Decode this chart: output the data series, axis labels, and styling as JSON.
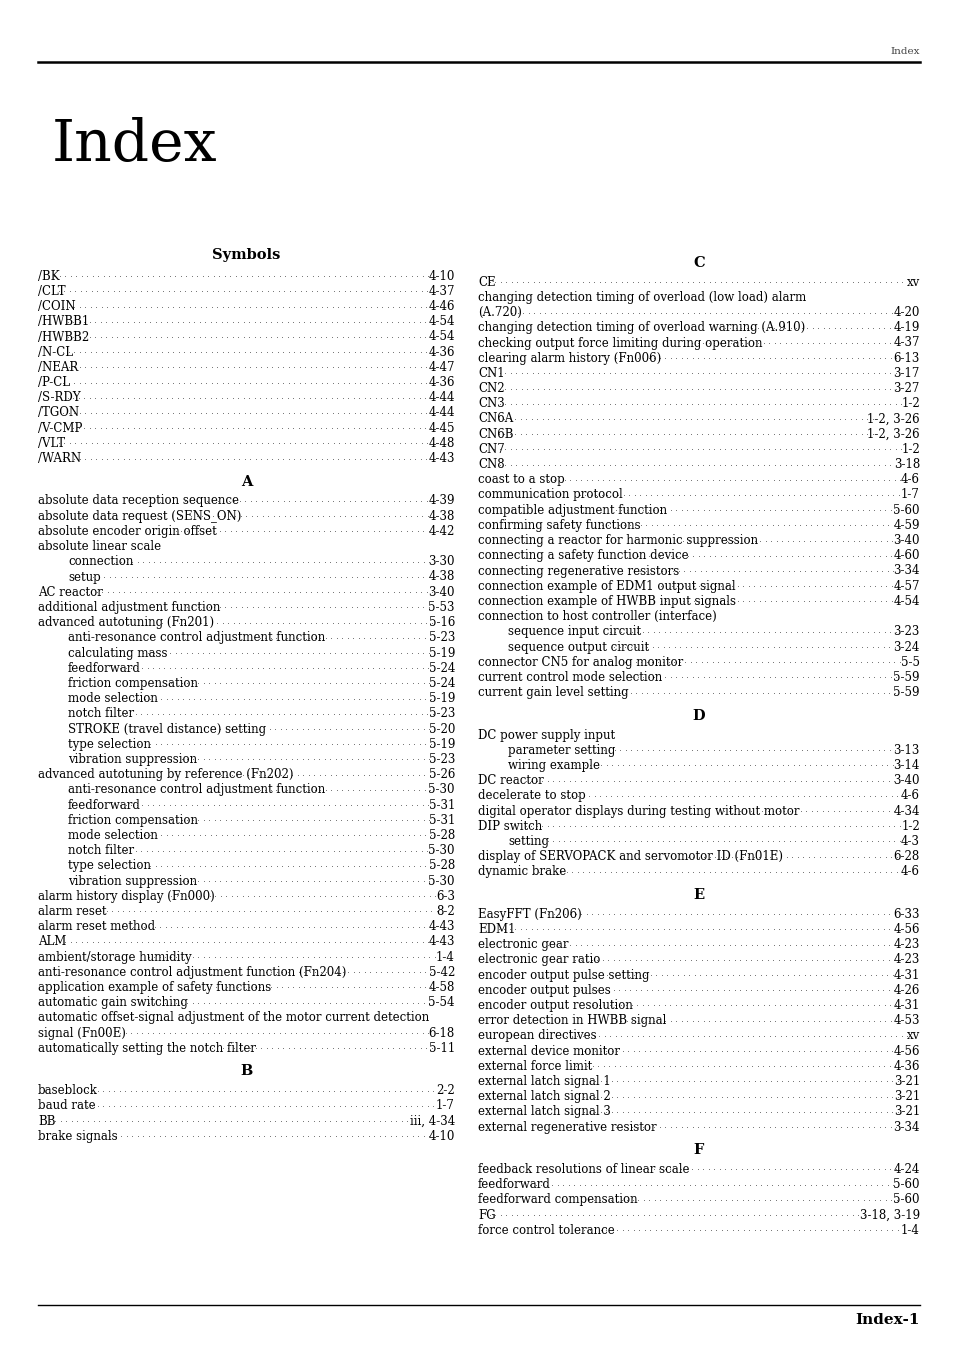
{
  "header_right": "Index",
  "footer_text": "Index-1",
  "title_index": "Index",
  "bg_color": "#ffffff",
  "left_entries": [
    {
      "text": "/BK",
      "page": "4-10",
      "indent": 0
    },
    {
      "text": "/CLT",
      "page": "4-37",
      "indent": 0
    },
    {
      "text": "/COIN",
      "page": "4-46",
      "indent": 0
    },
    {
      "text": "/HWBB1",
      "page": "4-54",
      "indent": 0
    },
    {
      "text": "/HWBB2",
      "page": "4-54",
      "indent": 0
    },
    {
      "text": "/N-CL",
      "page": "4-36",
      "indent": 0
    },
    {
      "text": "/NEAR",
      "page": "4-47",
      "indent": 0
    },
    {
      "text": "/P-CL",
      "page": "4-36",
      "indent": 0
    },
    {
      "text": "/S-RDY",
      "page": "4-44",
      "indent": 0
    },
    {
      "text": "/TGON",
      "page": "4-44",
      "indent": 0
    },
    {
      "text": "/V-CMP",
      "page": "4-45",
      "indent": 0
    },
    {
      "text": "/VLT",
      "page": "4-48",
      "indent": 0
    },
    {
      "text": "/WARN",
      "page": "4-43",
      "indent": 0
    },
    {
      "text": "A",
      "type": "section_header"
    },
    {
      "text": "absolute data reception sequence",
      "page": "4-39",
      "indent": 0
    },
    {
      "text": "absolute data request (SENS_ON)",
      "page": "4-38",
      "indent": 0
    },
    {
      "text": "absolute encoder origin offset",
      "page": "4-42",
      "indent": 0
    },
    {
      "text": "absolute linear scale",
      "type": "nopage",
      "indent": 0
    },
    {
      "text": "connection",
      "page": "3-30",
      "indent": 1
    },
    {
      "text": "setup",
      "page": "4-38",
      "indent": 1
    },
    {
      "text": "AC reactor",
      "page": "3-40",
      "indent": 0
    },
    {
      "text": "additional adjustment function",
      "page": "5-53",
      "indent": 0
    },
    {
      "text": "advanced autotuning (Fn201)",
      "page": "5-16",
      "indent": 0
    },
    {
      "text": "anti-resonance control adjustment function",
      "page": "5-23",
      "indent": 1
    },
    {
      "text": "calculating mass",
      "page": "5-19",
      "indent": 1
    },
    {
      "text": "feedforward",
      "page": "5-24",
      "indent": 1
    },
    {
      "text": "friction compensation",
      "page": "5-24",
      "indent": 1
    },
    {
      "text": "mode selection",
      "page": "5-19",
      "indent": 1
    },
    {
      "text": "notch filter",
      "page": "5-23",
      "indent": 1
    },
    {
      "text": "STROKE (travel distance) setting",
      "page": "5-20",
      "indent": 1
    },
    {
      "text": "type selection",
      "page": "5-19",
      "indent": 1
    },
    {
      "text": "vibration suppression",
      "page": "5-23",
      "indent": 1
    },
    {
      "text": "advanced autotuning by reference (Fn202)",
      "page": "5-26",
      "indent": 0
    },
    {
      "text": "anti-resonance control adjustment function",
      "page": "5-30",
      "indent": 1
    },
    {
      "text": "feedforward",
      "page": "5-31",
      "indent": 1
    },
    {
      "text": "friction compensation",
      "page": "5-31",
      "indent": 1
    },
    {
      "text": "mode selection",
      "page": "5-28",
      "indent": 1
    },
    {
      "text": "notch filter",
      "page": "5-30",
      "indent": 1
    },
    {
      "text": "type selection",
      "page": "5-28",
      "indent": 1
    },
    {
      "text": "vibration suppression",
      "page": "5-30",
      "indent": 1
    },
    {
      "text": "alarm history display (Fn000)",
      "page": "6-3",
      "indent": 0
    },
    {
      "text": "alarm reset",
      "page": "8-2",
      "indent": 0
    },
    {
      "text": "alarm reset method",
      "page": "4-43",
      "indent": 0
    },
    {
      "text": "ALM",
      "page": "4-43",
      "indent": 0
    },
    {
      "text": "ambient/storage humidity",
      "page": "1-4",
      "indent": 0
    },
    {
      "text": "anti-resonance control adjustment function (Fn204)",
      "page": "5-42",
      "indent": 0
    },
    {
      "text": "application example of safety functions",
      "page": "4-58",
      "indent": 0
    },
    {
      "text": "automatic gain switching",
      "page": "5-54",
      "indent": 0
    },
    {
      "text": "automatic offset-signal adjustment of the motor current detection",
      "type": "nopage",
      "indent": 0
    },
    {
      "text": "signal (Fn00E)",
      "page": "6-18",
      "indent": 0
    },
    {
      "text": "automatically setting the notch filter",
      "page": "5-11",
      "indent": 0
    },
    {
      "text": "B",
      "type": "section_header"
    },
    {
      "text": "baseblock",
      "page": "2-2",
      "indent": 0
    },
    {
      "text": "baud rate",
      "page": "1-7",
      "indent": 0
    },
    {
      "text": "BB",
      "page": "iii, 4-34",
      "indent": 0
    },
    {
      "text": "brake signals",
      "page": "4-10",
      "indent": 0
    }
  ],
  "right_entries": [
    {
      "text": "C",
      "type": "section_header"
    },
    {
      "text": "CE",
      "page": "xv",
      "indent": 0
    },
    {
      "text": "changing detection timing of overload (low load) alarm",
      "type": "nopage",
      "indent": 0
    },
    {
      "text": "(A.720)",
      "page": "4-20",
      "indent": 0
    },
    {
      "text": "changing detection timing of overload warning (A.910)",
      "page": "4-19",
      "indent": 0
    },
    {
      "text": "checking output force limiting during operation",
      "page": "4-37",
      "indent": 0
    },
    {
      "text": "clearing alarm history (Fn006)",
      "page": "6-13",
      "indent": 0
    },
    {
      "text": "CN1",
      "page": "3-17",
      "indent": 0
    },
    {
      "text": "CN2",
      "page": "3-27",
      "indent": 0
    },
    {
      "text": "CN3",
      "page": "1-2",
      "indent": 0
    },
    {
      "text": "CN6A",
      "page": "1-2, 3-26",
      "indent": 0
    },
    {
      "text": "CN6B",
      "page": "1-2, 3-26",
      "indent": 0
    },
    {
      "text": "CN7",
      "page": "1-2",
      "indent": 0
    },
    {
      "text": "CN8",
      "page": "3-18",
      "indent": 0
    },
    {
      "text": "coast to a stop",
      "page": "4-6",
      "indent": 0
    },
    {
      "text": "communication protocol",
      "page": "1-7",
      "indent": 0
    },
    {
      "text": "compatible adjustment function",
      "page": "5-60",
      "indent": 0
    },
    {
      "text": "confirming safety functions",
      "page": "4-59",
      "indent": 0
    },
    {
      "text": "connecting a reactor for harmonic suppression",
      "page": "3-40",
      "indent": 0
    },
    {
      "text": "connecting a safety function device",
      "page": "4-60",
      "indent": 0
    },
    {
      "text": "connecting regenerative resistors",
      "page": "3-34",
      "indent": 0
    },
    {
      "text": "connection example of EDM1 output signal",
      "page": "4-57",
      "indent": 0
    },
    {
      "text": "connection example of HWBB input signals",
      "page": "4-54",
      "indent": 0
    },
    {
      "text": "connection to host controller (interface)",
      "type": "nopage",
      "indent": 0
    },
    {
      "text": "sequence input circuit",
      "page": "3-23",
      "indent": 1
    },
    {
      "text": "sequence output circuit",
      "page": "3-24",
      "indent": 1
    },
    {
      "text": "connector CN5 for analog monitor",
      "page": "5-5",
      "indent": 0
    },
    {
      "text": "current control mode selection",
      "page": "5-59",
      "indent": 0
    },
    {
      "text": "current gain level setting",
      "page": "5-59",
      "indent": 0
    },
    {
      "text": "D",
      "type": "section_header"
    },
    {
      "text": "DC power supply input",
      "type": "nopage",
      "indent": 0
    },
    {
      "text": "parameter setting",
      "page": "3-13",
      "indent": 1
    },
    {
      "text": "wiring example",
      "page": "3-14",
      "indent": 1
    },
    {
      "text": "DC reactor",
      "page": "3-40",
      "indent": 0
    },
    {
      "text": "decelerate to stop",
      "page": "4-6",
      "indent": 0
    },
    {
      "text": "digital operator displays during testing without motor",
      "page": "4-34",
      "indent": 0
    },
    {
      "text": "DIP switch",
      "page": "1-2",
      "indent": 0
    },
    {
      "text": "setting",
      "page": "4-3",
      "indent": 1
    },
    {
      "text": "display of SERVOPACK and servomotor ID (Fn01E)",
      "page": "6-28",
      "indent": 0
    },
    {
      "text": "dynamic brake",
      "page": "4-6",
      "indent": 0
    },
    {
      "text": "E",
      "type": "section_header"
    },
    {
      "text": "EasyFFT (Fn206)",
      "page": "6-33",
      "indent": 0
    },
    {
      "text": "EDM1",
      "page": "4-56",
      "indent": 0
    },
    {
      "text": "electronic gear",
      "page": "4-23",
      "indent": 0
    },
    {
      "text": "electronic gear ratio",
      "page": "4-23",
      "indent": 0
    },
    {
      "text": "encoder output pulse setting",
      "page": "4-31",
      "indent": 0
    },
    {
      "text": "encoder output pulses",
      "page": "4-26",
      "indent": 0
    },
    {
      "text": "encoder output resolution",
      "page": "4-31",
      "indent": 0
    },
    {
      "text": "error detection in HWBB signal",
      "page": "4-53",
      "indent": 0
    },
    {
      "text": "european directives",
      "page": "xv",
      "indent": 0
    },
    {
      "text": "external device monitor",
      "page": "4-56",
      "indent": 0
    },
    {
      "text": "external force limit",
      "page": "4-36",
      "indent": 0
    },
    {
      "text": "external latch signal 1",
      "page": "3-21",
      "indent": 0
    },
    {
      "text": "external latch signal 2",
      "page": "3-21",
      "indent": 0
    },
    {
      "text": "external latch signal 3",
      "page": "3-21",
      "indent": 0
    },
    {
      "text": "external regenerative resistor",
      "page": "3-34",
      "indent": 0
    },
    {
      "text": "F",
      "type": "section_header"
    },
    {
      "text": "feedback resolutions of linear scale",
      "page": "4-24",
      "indent": 0
    },
    {
      "text": "feedforward",
      "page": "5-60",
      "indent": 0
    },
    {
      "text": "feedforward compensation",
      "page": "5-60",
      "indent": 0
    },
    {
      "text": "FG",
      "page": "3-18, 3-19",
      "indent": 0
    },
    {
      "text": "force control tolerance",
      "page": "1-4",
      "indent": 0
    }
  ]
}
